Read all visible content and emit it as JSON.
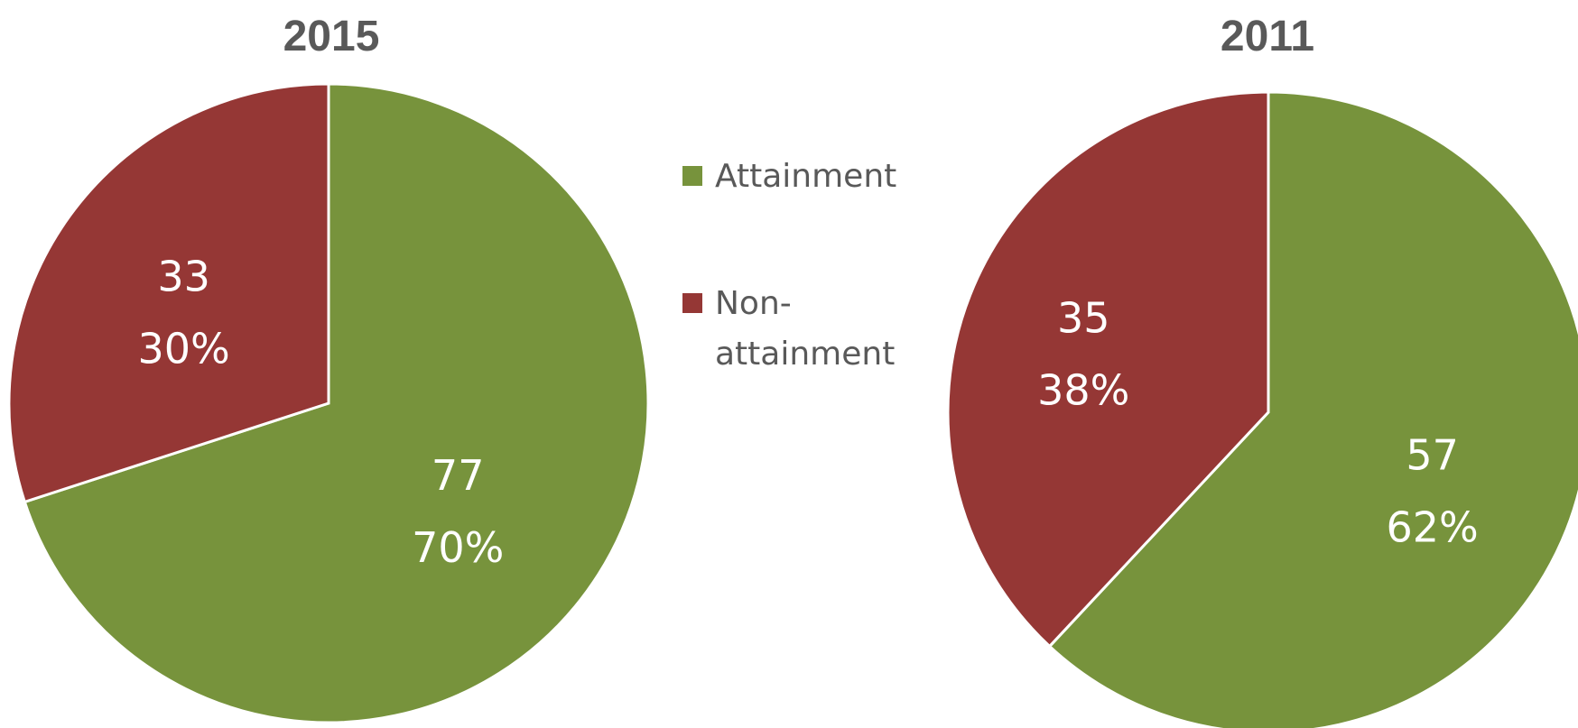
{
  "legend": {
    "placement": "center",
    "items": [
      {
        "label_lines": [
          "Attainment"
        ],
        "color": "#77933C"
      },
      {
        "label_lines": [
          "Non-",
          "attainment"
        ],
        "color": "#953735"
      }
    ]
  },
  "chart_data": [
    {
      "type": "pie",
      "title": "2015",
      "categories": [
        "Attainment",
        "Non-attainment"
      ],
      "values": [
        77,
        33
      ],
      "percent_labels": [
        "70%",
        "30%"
      ],
      "colors": [
        "#77933C",
        "#953735"
      ]
    },
    {
      "type": "pie",
      "title": "2011",
      "categories": [
        "Attainment",
        "Non-attainment"
      ],
      "values": [
        57,
        35
      ],
      "percent_labels": [
        "62%",
        "38%"
      ],
      "colors": [
        "#77933C",
        "#953735"
      ]
    }
  ]
}
